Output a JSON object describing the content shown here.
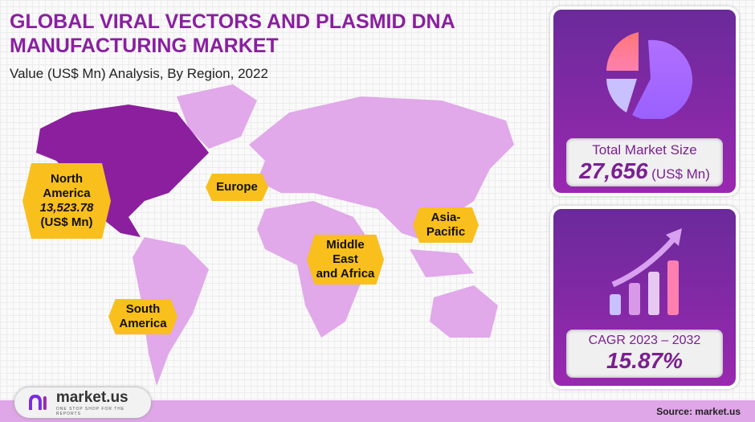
{
  "header": {
    "title": "GLOBAL VIRAL VECTORS AND PLASMID DNA MANUFACTURING MARKET",
    "subtitle": "Value (US$ Mn) Analysis, By Region, 2022"
  },
  "regions": {
    "north_america": {
      "line1": "North",
      "line2": "America",
      "value": "13,523.78",
      "unit": "(US$ Mn)"
    },
    "europe": "Europe",
    "asia_pacific": {
      "line1": "Asia-",
      "line2": "Pacific"
    },
    "mea": {
      "line1": "Middle",
      "line2": "East",
      "line3": "and Africa"
    },
    "south_america": {
      "line1": "South",
      "line2": "America"
    }
  },
  "colors": {
    "highlight": "#8b1f9e",
    "map": "#e1a8ea",
    "label": "#f9bf1c"
  },
  "market_size": {
    "label": "Total Market Size",
    "value": "27,656",
    "unit": "(US$ Mn)"
  },
  "cagr": {
    "label": "CAGR 2023 – 2032",
    "value": "15.87%"
  },
  "footer": {
    "brand": "market.us",
    "tagline": "ONE STOP SHOP FOR THE REPORTS",
    "source": "Source: market.us"
  }
}
